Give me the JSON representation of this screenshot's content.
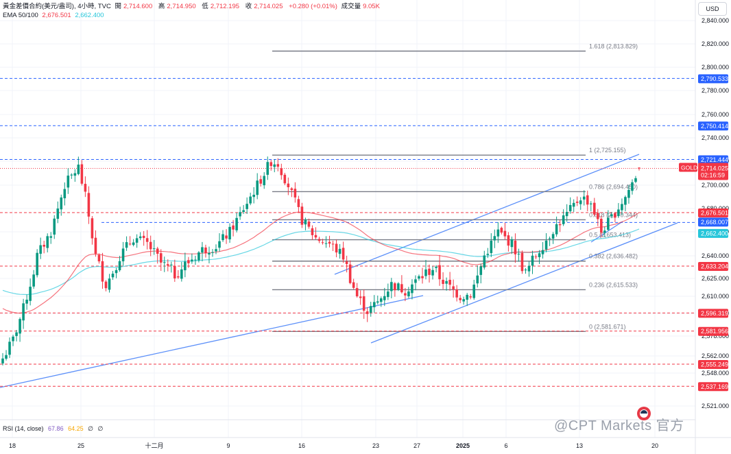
{
  "header": {
    "symbol": "黃金差價合約(美元/盎司), 4小時, TVC",
    "open_label": "開",
    "open": "2,714.600",
    "high_label": "高",
    "high": "2,714.950",
    "low_label": "低",
    "low": "2,712.195",
    "close_label": "收",
    "close": "2,714.025",
    "change": "+0.280 (+0.01%)",
    "volume_label": "成交量",
    "volume": "9.05K",
    "ema_label": "EMA 50/100",
    "ema50": "2,676.501",
    "ema100": "2,662.400"
  },
  "currency_button": "USD",
  "rsi": {
    "label": "RSI (14, close)",
    "value": "67.86",
    "ma": "64.25",
    "extra1": "∅",
    "extra2": "∅"
  },
  "watermark": "@CPT Markets 官方",
  "colors": {
    "up": "#089981",
    "down": "#f23645",
    "ema50": "#f23645",
    "ema100": "#26c6da",
    "trend": "#5b8ff9",
    "fib": "#787b86"
  },
  "chart_data": {
    "type": "candlestick",
    "instrument": "GOLD",
    "timeframe": "4h",
    "y_axis": {
      "range": [
        2515,
        2850
      ],
      "tick_labels": [
        "2,840.000",
        "2,820.000",
        "2,800.000",
        "2,780.000",
        "2,760.000",
        "2,740.000",
        "2,720.000",
        "2,700.000",
        "2,680.000",
        "2,660.000",
        "2,640.000",
        "2,625.000",
        "2,610.000",
        "2,596.000",
        "2,578.000",
        "2,562.000",
        "2,548.000",
        "2,521.000"
      ]
    },
    "x_axis": {
      "tick_labels": [
        "18",
        "25",
        "十二月",
        "9",
        "16",
        "23",
        "27",
        "2025",
        "6",
        "13",
        "20"
      ]
    },
    "price_tags": [
      {
        "value": 2790.533,
        "label": "2,790.533",
        "style": "blue"
      },
      {
        "value": 2750.414,
        "label": "2,750.414",
        "style": "blue"
      },
      {
        "value": 2721.444,
        "label": "2,721.444",
        "style": "blue"
      },
      {
        "value": 2714.025,
        "label": "2,714.025",
        "sub": "02:16:59",
        "name": "GOLD",
        "style": "last"
      },
      {
        "value": 2676.501,
        "label": "2,676.501",
        "style": "red"
      },
      {
        "value": 2668.007,
        "label": "2,668.007",
        "style": "blue"
      },
      {
        "value": 2662.4,
        "label": "2,662.400",
        "style": "cyan"
      },
      {
        "value": 2633.204,
        "label": "2,633.204",
        "style": "red"
      },
      {
        "value": 2596.319,
        "label": "2,596.319",
        "style": "red"
      },
      {
        "value": 2581.956,
        "label": "2,581.956",
        "style": "red"
      },
      {
        "value": 2555.249,
        "label": "2,555.249",
        "style": "red"
      },
      {
        "value": 2537.169,
        "label": "2,537.169",
        "style": "red"
      }
    ],
    "fib_levels": [
      {
        "ratio": "1.618",
        "value": 2813.829,
        "label": "1.618 (2,813.829)"
      },
      {
        "ratio": "1",
        "value": 2725.155,
        "label": "1 (2,725.155)"
      },
      {
        "ratio": "0.786",
        "value": 2694.45,
        "label": "0.786 (2,694.450)"
      },
      {
        "ratio": "0.618",
        "value": 2670.344,
        "label": "0.618 (2,670.344)"
      },
      {
        "ratio": "0.5",
        "value": 2653.413,
        "label": "0.5 (2,653.413)"
      },
      {
        "ratio": "0.382",
        "value": 2636.482,
        "label": "0.382 (2,636.482)"
      },
      {
        "ratio": "0.236",
        "value": 2615.533,
        "label": "0.236 (2,615.533)"
      },
      {
        "ratio": "0",
        "value": 2581.671,
        "label": "0 (2,581.671)"
      }
    ],
    "close_path": [
      [
        0,
        2560
      ],
      [
        3,
        2575
      ],
      [
        6,
        2600
      ],
      [
        10,
        2640
      ],
      [
        14,
        2660
      ],
      [
        18,
        2700
      ],
      [
        22,
        2715
      ],
      [
        24,
        2690
      ],
      [
        27,
        2640
      ],
      [
        30,
        2620
      ],
      [
        34,
        2640
      ],
      [
        38,
        2655
      ],
      [
        42,
        2650
      ],
      [
        46,
        2635
      ],
      [
        50,
        2628
      ],
      [
        54,
        2636
      ],
      [
        58,
        2645
      ],
      [
        62,
        2648
      ],
      [
        66,
        2660
      ],
      [
        70,
        2680
      ],
      [
        74,
        2700
      ],
      [
        78,
        2720
      ],
      [
        80,
        2718
      ],
      [
        83,
        2700
      ],
      [
        87,
        2670
      ],
      [
        91,
        2655
      ],
      [
        95,
        2650
      ],
      [
        99,
        2640
      ],
      [
        103,
        2610
      ],
      [
        106,
        2598
      ],
      [
        109,
        2605
      ],
      [
        113,
        2620
      ],
      [
        117,
        2615
      ],
      [
        121,
        2625
      ],
      [
        125,
        2632
      ],
      [
        129,
        2620
      ],
      [
        133,
        2610
      ],
      [
        136,
        2612
      ],
      [
        140,
        2640
      ],
      [
        144,
        2660
      ],
      [
        148,
        2650
      ],
      [
        152,
        2628
      ],
      [
        156,
        2645
      ],
      [
        160,
        2662
      ],
      [
        164,
        2675
      ],
      [
        168,
        2690
      ],
      [
        171,
        2685
      ],
      [
        174,
        2660
      ],
      [
        177,
        2672
      ],
      [
        181,
        2690
      ],
      [
        185,
        2714
      ]
    ]
  }
}
